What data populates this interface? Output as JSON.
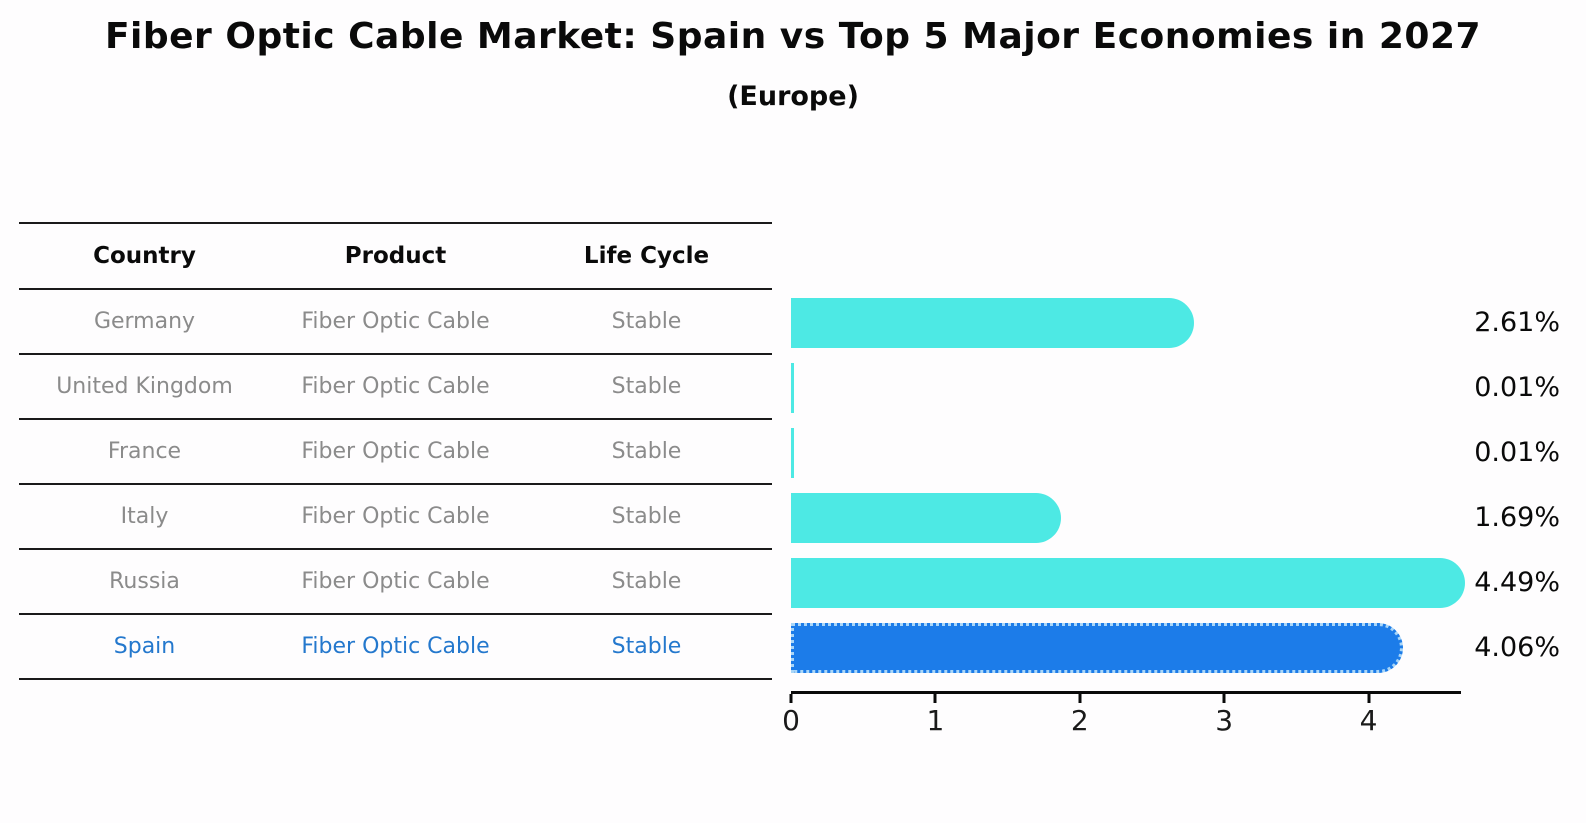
{
  "title": "Fiber Optic Cable Market: Spain vs Top 5 Major Economies in 2027",
  "subtitle": "(Europe)",
  "table": {
    "headers": [
      "Country",
      "Product",
      "Life Cycle"
    ],
    "rows": [
      {
        "country": "Germany",
        "product": "Fiber Optic Cable",
        "life_cycle": "Stable"
      },
      {
        "country": "United Kingdom",
        "product": "Fiber Optic Cable",
        "life_cycle": "Stable"
      },
      {
        "country": "France",
        "product": "Fiber Optic Cable",
        "life_cycle": "Stable"
      },
      {
        "country": "Italy",
        "product": "Fiber Optic Cable",
        "life_cycle": "Stable"
      },
      {
        "country": "Russia",
        "product": "Fiber Optic Cable",
        "life_cycle": "Stable"
      },
      {
        "country": "Spain",
        "product": "Fiber Optic Cable",
        "life_cycle": "Stable"
      }
    ],
    "highlight_row": 5,
    "row_text_color": "#8b8b8b",
    "highlight_text_color": "#2478cd"
  },
  "chart_data": {
    "type": "bar",
    "orientation": "horizontal",
    "title": "Fiber Optic Cable Market: Spain vs Top 5 Major Economies in 2027",
    "subtitle": "(Europe)",
    "categories": [
      "Germany",
      "United Kingdom",
      "France",
      "Italy",
      "Russia",
      "Spain"
    ],
    "values": [
      2.61,
      0.01,
      0.01,
      1.69,
      4.49,
      4.06
    ],
    "value_labels": [
      "2.61%",
      "0.01%",
      "0.01%",
      "1.69%",
      "4.49%",
      "4.06%"
    ],
    "unit": "%",
    "x_ticks": [
      0,
      1,
      2,
      3,
      4
    ],
    "xlim": [
      0,
      4.64
    ],
    "grid": false,
    "legend": false,
    "bar_color": "#4de9e4",
    "highlight_bar_color": "#1c7ce9",
    "highlight_border_color": "#a9d6f8",
    "highlight_index": 5,
    "axis_color": "#0a0a0a"
  }
}
